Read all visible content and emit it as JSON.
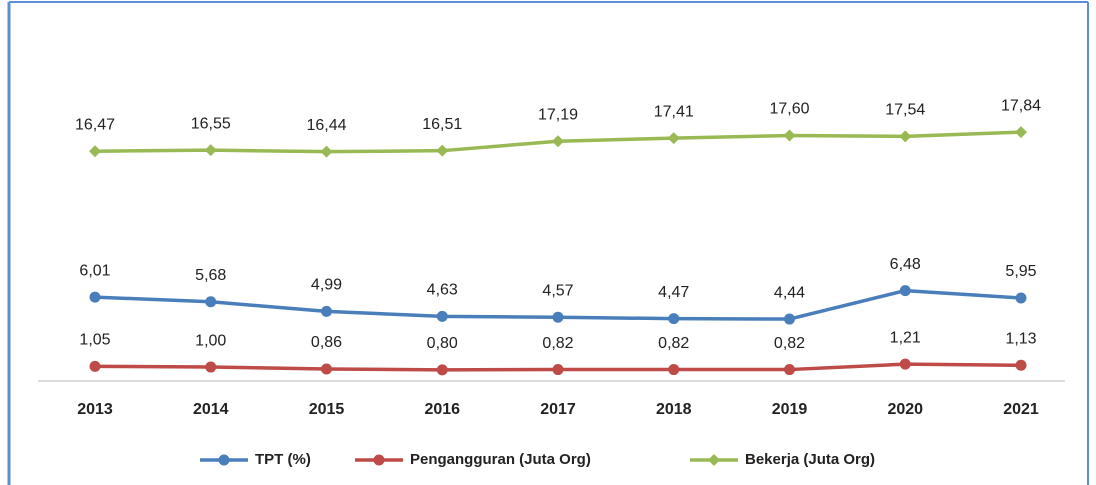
{
  "chart_data": {
    "type": "line",
    "categories": [
      "2013",
      "2014",
      "2015",
      "2016",
      "2017",
      "2018",
      "2019",
      "2020",
      "2021"
    ],
    "series": [
      {
        "name": "TPT (%)",
        "color": "#4a7ebb",
        "values": [
          6.01,
          5.68,
          4.99,
          4.63,
          4.57,
          4.47,
          4.44,
          6.48,
          5.95
        ],
        "value_labels": [
          "6,01",
          "5,68",
          "4,99",
          "4,63",
          "4,57",
          "4,47",
          "4,44",
          "6,48",
          "5,95"
        ]
      },
      {
        "name": "Pengangguran (Juta Org)",
        "color": "#be4b48",
        "values": [
          1.05,
          1.0,
          0.86,
          0.8,
          0.82,
          0.82,
          0.82,
          1.21,
          1.13
        ],
        "value_labels": [
          "1,05",
          "1,00",
          "0,86",
          "0,80",
          "0,82",
          "0,82",
          "0,82",
          "1,21",
          "1,13"
        ]
      },
      {
        "name": "Bekerja (Juta Org)",
        "color": "#98b954",
        "values": [
          16.47,
          16.55,
          16.44,
          16.51,
          17.19,
          17.41,
          17.6,
          17.54,
          17.84
        ],
        "value_labels": [
          "16,47",
          "16,55",
          "16,44",
          "16,51",
          "17,19",
          "17,41",
          "17,60",
          "17,54",
          "17,84"
        ]
      }
    ],
    "ylim": [
      0,
      20
    ],
    "legend": "bottom"
  }
}
